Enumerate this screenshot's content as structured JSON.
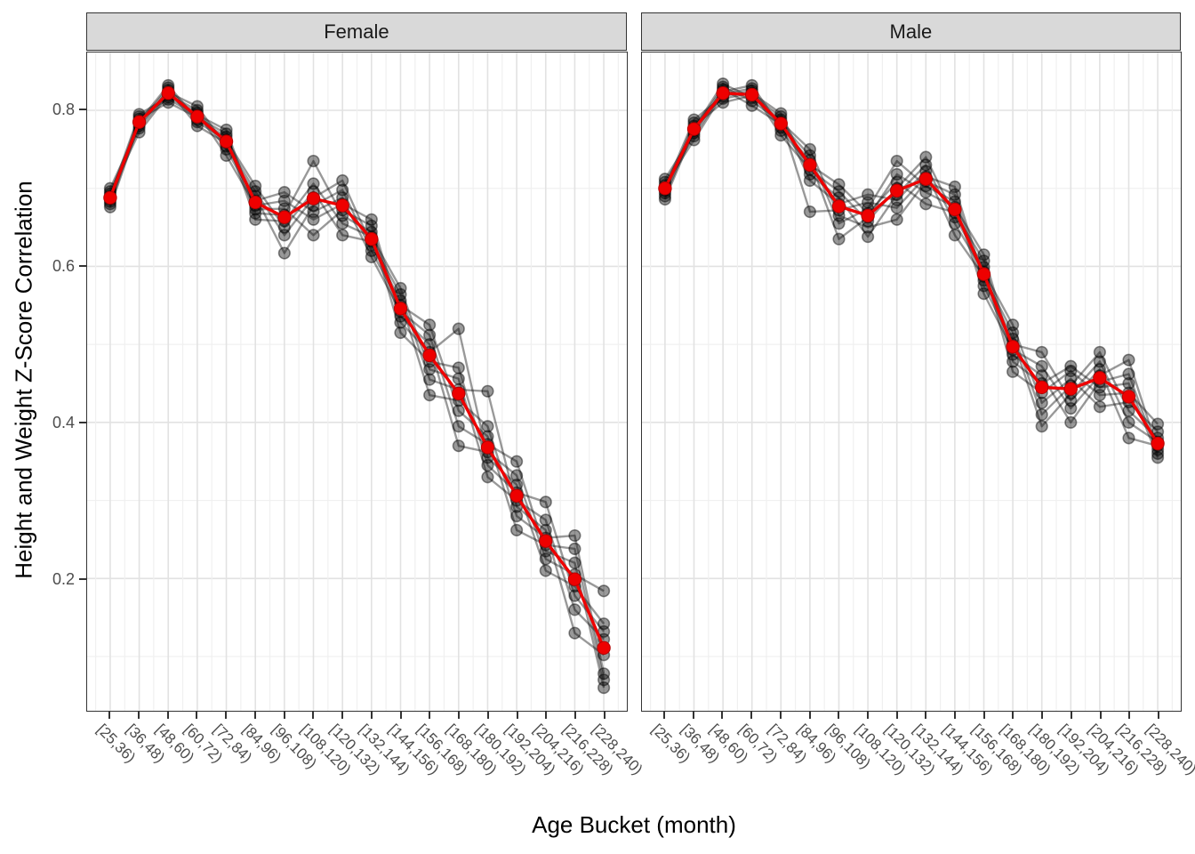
{
  "figure": {
    "x_axis_title": "Age Bucket (month)",
    "y_axis_title": "Height and Weight Z-Score Correlation"
  },
  "colors": {
    "mean_line": "#ee0000",
    "mean_point_stroke": "#b30000",
    "replicate_line": "rgba(0,0,0,0.40)",
    "replicate_point_fill": "rgba(0,0,0,0.40)",
    "replicate_point_stroke": "rgba(0,0,0,0.45)",
    "strip_background": "#d9d9d9",
    "panel_border": "#333333",
    "grid_major": "#e2e2e2",
    "grid_minor": "#f0f0f0",
    "tick_text": "#4d4d4d"
  },
  "chart_data": {
    "type": "line",
    "title": "",
    "xlabel": "Age Bucket (month)",
    "ylabel": "Height and Weight Z-Score Correlation",
    "legend_position": "none",
    "grid": "on",
    "ylim": [
      0.03,
      0.875
    ],
    "y_ticks": [
      0.2,
      0.4,
      0.6,
      0.8
    ],
    "y_tick_labels": [
      "0.2",
      "0.4",
      "0.6",
      "0.8"
    ],
    "y_minor_ticks": [
      0.1,
      0.3,
      0.5,
      0.7
    ],
    "categories": [
      "[25,36)",
      "[36,48)",
      "[48,60)",
      "[60,72)",
      "[72,84)",
      "[84,96)",
      "[96,108)",
      "[108,120)",
      "[120,132)",
      "[132,144)",
      "[144,156)",
      "[156,168)",
      "[168,180)",
      "[180,192)",
      "[192,204)",
      "[204,216)",
      "[216,228)",
      "[228,240)"
    ],
    "facets": [
      {
        "label": "Female",
        "mean_series_name": "mean",
        "mean": [
          0.688,
          0.785,
          0.822,
          0.792,
          0.76,
          0.682,
          0.663,
          0.687,
          0.678,
          0.635,
          0.546,
          0.486,
          0.437,
          0.368,
          0.306,
          0.248,
          0.199,
          0.111
        ],
        "replicates": [
          [
            0.676,
            0.783,
            0.829,
            0.785,
            0.762,
            0.703,
            0.65,
            0.696,
            0.64,
            0.632,
            0.564,
            0.455,
            0.442,
            0.44,
            0.292,
            0.262,
            0.13,
            0.102
          ],
          [
            0.68,
            0.786,
            0.832,
            0.788,
            0.766,
            0.66,
            0.658,
            0.706,
            0.655,
            0.638,
            0.572,
            0.468,
            0.456,
            0.33,
            0.3,
            0.275,
            0.16,
            0.122
          ],
          [
            0.683,
            0.789,
            0.81,
            0.791,
            0.77,
            0.668,
            0.666,
            0.735,
            0.665,
            0.644,
            0.515,
            0.478,
            0.47,
            0.345,
            0.31,
            0.298,
            0.178,
            0.132
          ],
          [
            0.686,
            0.792,
            0.814,
            0.794,
            0.775,
            0.673,
            0.674,
            0.64,
            0.672,
            0.652,
            0.528,
            0.49,
            0.52,
            0.355,
            0.32,
            0.21,
            0.19,
            0.142
          ],
          [
            0.69,
            0.795,
            0.817,
            0.797,
            0.742,
            0.678,
            0.684,
            0.66,
            0.68,
            0.66,
            0.536,
            0.5,
            0.37,
            0.362,
            0.332,
            0.225,
            0.205,
            0.184
          ],
          [
            0.693,
            0.772,
            0.82,
            0.8,
            0.75,
            0.684,
            0.695,
            0.67,
            0.688,
            0.612,
            0.542,
            0.512,
            0.395,
            0.372,
            0.35,
            0.235,
            0.22,
            0.06
          ],
          [
            0.696,
            0.777,
            0.823,
            0.805,
            0.754,
            0.69,
            0.617,
            0.678,
            0.698,
            0.62,
            0.55,
            0.525,
            0.415,
            0.382,
            0.262,
            0.243,
            0.238,
            0.07
          ],
          [
            0.7,
            0.78,
            0.826,
            0.78,
            0.758,
            0.696,
            0.64,
            0.688,
            0.71,
            0.627,
            0.556,
            0.435,
            0.428,
            0.395,
            0.28,
            0.252,
            0.255,
            0.078
          ]
        ]
      },
      {
        "label": "Male",
        "mean_series_name": "mean",
        "mean": [
          0.7,
          0.776,
          0.822,
          0.82,
          0.783,
          0.73,
          0.677,
          0.665,
          0.697,
          0.712,
          0.673,
          0.59,
          0.497,
          0.445,
          0.443,
          0.457,
          0.433,
          0.373
        ],
        "replicates": [
          [
            0.686,
            0.774,
            0.83,
            0.812,
            0.785,
            0.75,
            0.665,
            0.65,
            0.66,
            0.709,
            0.692,
            0.575,
            0.5,
            0.49,
            0.428,
            0.468,
            0.38,
            0.37
          ],
          [
            0.69,
            0.777,
            0.834,
            0.816,
            0.788,
            0.67,
            0.672,
            0.682,
            0.675,
            0.715,
            0.702,
            0.582,
            0.507,
            0.395,
            0.437,
            0.478,
            0.4,
            0.375
          ],
          [
            0.694,
            0.78,
            0.81,
            0.819,
            0.792,
            0.71,
            0.68,
            0.692,
            0.685,
            0.722,
            0.64,
            0.587,
            0.515,
            0.41,
            0.447,
            0.49,
            0.415,
            0.38
          ],
          [
            0.697,
            0.784,
            0.815,
            0.822,
            0.796,
            0.718,
            0.688,
            0.638,
            0.692,
            0.73,
            0.655,
            0.593,
            0.525,
            0.425,
            0.456,
            0.42,
            0.426,
            0.388
          ],
          [
            0.701,
            0.788,
            0.818,
            0.825,
            0.768,
            0.724,
            0.696,
            0.658,
            0.7,
            0.74,
            0.663,
            0.599,
            0.465,
            0.438,
            0.466,
            0.435,
            0.438,
            0.398
          ],
          [
            0.704,
            0.762,
            0.821,
            0.828,
            0.774,
            0.73,
            0.705,
            0.668,
            0.708,
            0.68,
            0.669,
            0.607,
            0.478,
            0.45,
            0.472,
            0.445,
            0.45,
            0.355
          ],
          [
            0.708,
            0.767,
            0.824,
            0.832,
            0.778,
            0.736,
            0.635,
            0.663,
            0.718,
            0.695,
            0.676,
            0.615,
            0.487,
            0.46,
            0.4,
            0.452,
            0.462,
            0.36
          ],
          [
            0.712,
            0.771,
            0.827,
            0.806,
            0.782,
            0.742,
            0.655,
            0.674,
            0.735,
            0.703,
            0.683,
            0.565,
            0.493,
            0.472,
            0.418,
            0.46,
            0.48,
            0.365
          ]
        ]
      }
    ]
  }
}
